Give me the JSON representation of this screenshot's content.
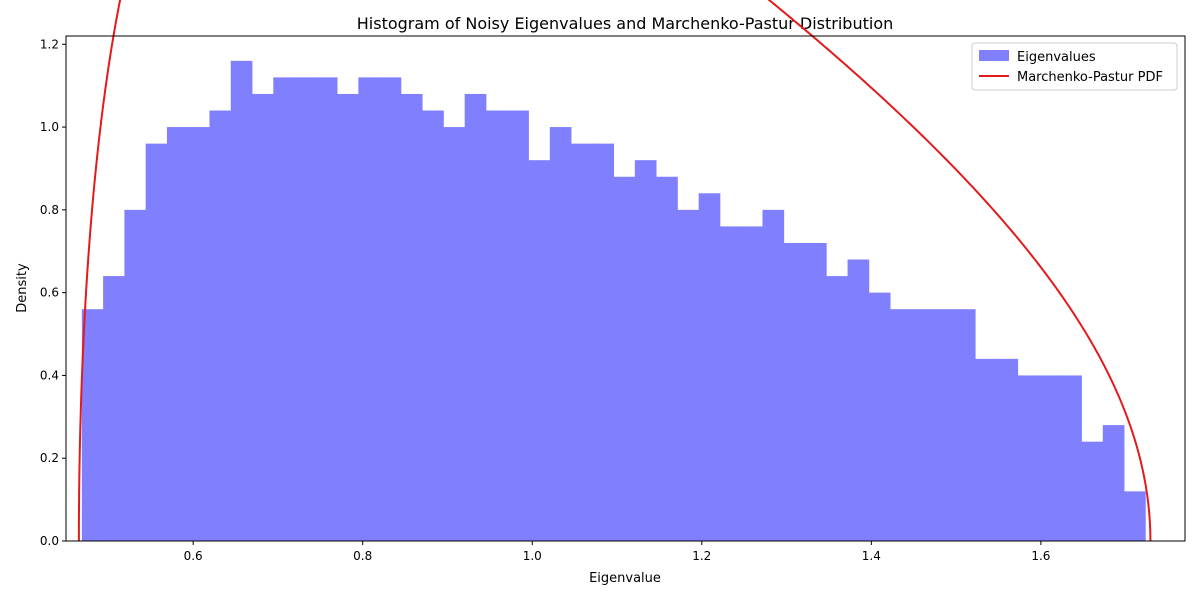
{
  "chart_data": {
    "type": "bar",
    "title": "Histogram of Noisy Eigenvalues and Marchenko-Pastur Distribution",
    "xlabel": "Eigenvalue",
    "ylabel": "Density",
    "xlim": [
      0.45,
      1.77
    ],
    "ylim": [
      0,
      1.22
    ],
    "xticks": [
      0.6,
      0.8,
      1.0,
      1.2,
      1.4,
      1.6
    ],
    "xtick_labels": [
      "0.6",
      "0.8",
      "1.0",
      "1.2",
      "1.4",
      "1.6"
    ],
    "yticks": [
      0.0,
      0.2,
      0.4,
      0.6,
      0.8,
      1.0,
      1.2
    ],
    "ytick_labels": [
      "0.0",
      "0.2",
      "0.4",
      "0.6",
      "0.8",
      "1.0",
      "1.2"
    ],
    "grid": false,
    "legend_position": "top-right",
    "series": [
      {
        "name": "Eigenvalues",
        "kind": "histogram",
        "color": "#8080ff",
        "bin_start": 0.4687,
        "bin_width": 0.02509,
        "values": [
          0.56,
          0.64,
          0.8,
          0.96,
          1.0,
          1.0,
          1.04,
          1.16,
          1.08,
          1.12,
          1.12,
          1.12,
          1.08,
          1.12,
          1.12,
          1.08,
          1.04,
          1.0,
          1.08,
          1.04,
          1.04,
          0.92,
          1.0,
          0.96,
          0.96,
          0.88,
          0.92,
          0.88,
          0.8,
          0.84,
          0.76,
          0.76,
          0.8,
          0.72,
          0.72,
          0.64,
          0.68,
          0.6,
          0.56,
          0.56,
          0.56,
          0.56,
          0.44,
          0.44,
          0.4,
          0.4,
          0.4,
          0.24,
          0.28,
          0.12
        ]
      },
      {
        "name": "Marchenko-Pastur PDF",
        "kind": "line",
        "color": "#e31a1c",
        "sigma2": 1.0,
        "ratio": 0.0576,
        "lambda_min": 0.4652,
        "lambda_max": 1.7292
      }
    ]
  }
}
